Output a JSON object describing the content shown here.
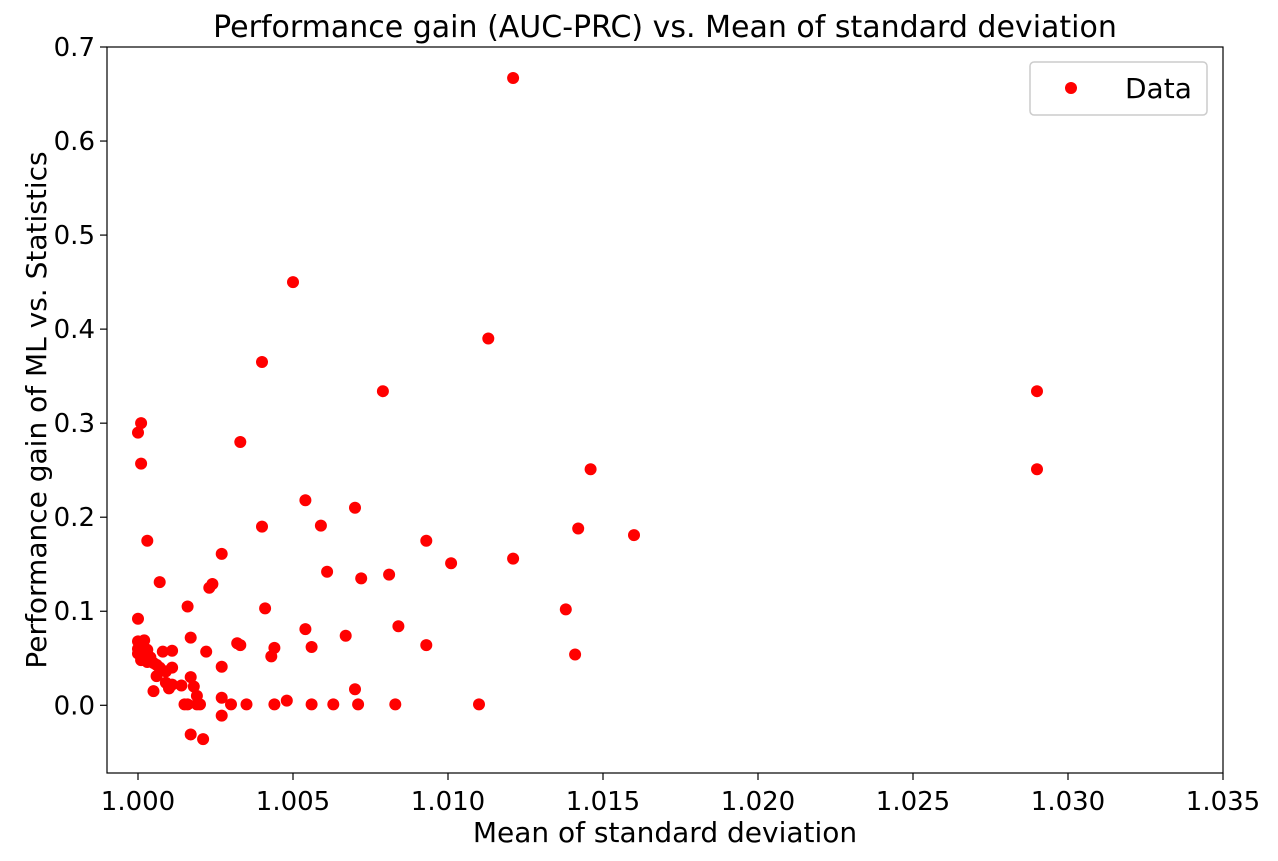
{
  "chart_data": {
    "type": "scatter",
    "title": "Performance gain (AUC-PRC) vs. Mean of standard deviation",
    "xlabel": "Mean of standard deviation",
    "ylabel": "Performance gain of ML vs. Statistics",
    "xlim": [
      0.999,
      1.035
    ],
    "ylim": [
      -0.072,
      0.7
    ],
    "xticks": [
      1.0,
      1.005,
      1.01,
      1.015,
      1.02,
      1.025,
      1.03,
      1.035
    ],
    "xtick_labels": [
      "1.000",
      "1.005",
      "1.010",
      "1.015",
      "1.020",
      "1.025",
      "1.030",
      "1.035"
    ],
    "yticks": [
      0.0,
      0.1,
      0.2,
      0.3,
      0.4,
      0.5,
      0.6,
      0.7
    ],
    "ytick_labels": [
      "0.0",
      "0.1",
      "0.2",
      "0.3",
      "0.4",
      "0.5",
      "0.6",
      "0.7"
    ],
    "grid": false,
    "legend": {
      "position": "top-right",
      "entries": [
        "Data"
      ]
    },
    "series": [
      {
        "name": "Data",
        "color": "#ff0000",
        "points": [
          [
            1.0121,
            0.667
          ],
          [
            1.005,
            0.45
          ],
          [
            1.0113,
            0.39
          ],
          [
            1.004,
            0.365
          ],
          [
            1.0079,
            0.334
          ],
          [
            1.029,
            0.334
          ],
          [
            1.0001,
            0.3
          ],
          [
            1.0,
            0.29
          ],
          [
            1.0033,
            0.28
          ],
          [
            1.0001,
            0.257
          ],
          [
            1.0146,
            0.251
          ],
          [
            1.029,
            0.251
          ],
          [
            1.0054,
            0.218
          ],
          [
            1.007,
            0.21
          ],
          [
            1.0059,
            0.191
          ],
          [
            1.004,
            0.19
          ],
          [
            1.0142,
            0.188
          ],
          [
            1.016,
            0.181
          ],
          [
            1.0003,
            0.175
          ],
          [
            1.0093,
            0.175
          ],
          [
            1.0027,
            0.161
          ],
          [
            1.0121,
            0.156
          ],
          [
            1.0101,
            0.151
          ],
          [
            1.0061,
            0.142
          ],
          [
            1.0081,
            0.139
          ],
          [
            1.0072,
            0.135
          ],
          [
            1.0007,
            0.131
          ],
          [
            1.0024,
            0.129
          ],
          [
            1.0023,
            0.125
          ],
          [
            1.0016,
            0.105
          ],
          [
            1.0041,
            0.103
          ],
          [
            1.0138,
            0.102
          ],
          [
            1.0,
            0.092
          ],
          [
            1.0084,
            0.084
          ],
          [
            1.0054,
            0.081
          ],
          [
            1.0067,
            0.074
          ],
          [
            1.0017,
            0.072
          ],
          [
            1.0,
            0.068
          ],
          [
            1.0002,
            0.069
          ],
          [
            1.0032,
            0.066
          ],
          [
            1.0033,
            0.064
          ],
          [
            1.0093,
            0.064
          ],
          [
            1.0044,
            0.061
          ],
          [
            1.0056,
            0.062
          ],
          [
            1.0,
            0.06
          ],
          [
            1.0001,
            0.058
          ],
          [
            1.0003,
            0.059
          ],
          [
            1.0011,
            0.058
          ],
          [
            1.0022,
            0.057
          ],
          [
            1.0008,
            0.057
          ],
          [
            1.0141,
            0.054
          ],
          [
            1.0043,
            0.052
          ],
          [
            1.0,
            0.055
          ],
          [
            1.0002,
            0.053
          ],
          [
            1.0004,
            0.051
          ],
          [
            1.0001,
            0.048
          ],
          [
            1.0003,
            0.046
          ],
          [
            1.0005,
            0.045
          ],
          [
            1.0006,
            0.043
          ],
          [
            1.0007,
            0.04
          ],
          [
            1.0011,
            0.04
          ],
          [
            1.0027,
            0.041
          ],
          [
            1.0009,
            0.036
          ],
          [
            1.0006,
            0.031
          ],
          [
            1.0017,
            0.03
          ],
          [
            1.0009,
            0.024
          ],
          [
            1.0011,
            0.022
          ],
          [
            1.0014,
            0.021
          ],
          [
            1.0018,
            0.02
          ],
          [
            1.001,
            0.018
          ],
          [
            1.0005,
            0.015
          ],
          [
            1.007,
            0.017
          ],
          [
            1.0019,
            0.01
          ],
          [
            1.0027,
            0.008
          ],
          [
            1.0048,
            0.005
          ],
          [
            1.0015,
            0.001
          ],
          [
            1.0016,
            0.001
          ],
          [
            1.0019,
            0.001
          ],
          [
            1.002,
            0.001
          ],
          [
            1.003,
            0.001
          ],
          [
            1.0035,
            0.001
          ],
          [
            1.0044,
            0.001
          ],
          [
            1.0056,
            0.001
          ],
          [
            1.0063,
            0.001
          ],
          [
            1.0071,
            0.001
          ],
          [
            1.0083,
            0.001
          ],
          [
            1.011,
            0.001
          ],
          [
            1.0027,
            -0.011
          ],
          [
            1.0017,
            -0.031
          ],
          [
            1.0021,
            -0.036
          ]
        ]
      }
    ]
  }
}
